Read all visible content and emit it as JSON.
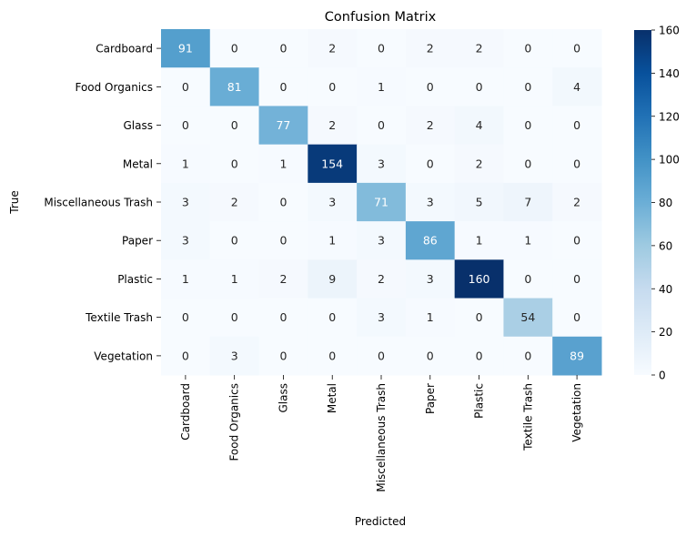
{
  "chart_data": {
    "type": "heatmap",
    "title": "Confusion Matrix",
    "xlabel": "Predicted",
    "ylabel": "True",
    "x_categories": [
      "Cardboard",
      "Food Organics",
      "Glass",
      "Metal",
      "Miscellaneous Trash",
      "Paper",
      "Plastic",
      "Textile Trash",
      "Vegetation"
    ],
    "y_categories": [
      "Cardboard",
      "Food Organics",
      "Glass",
      "Metal",
      "Miscellaneous Trash",
      "Paper",
      "Plastic",
      "Textile Trash",
      "Vegetation"
    ],
    "values": [
      [
        91,
        0,
        0,
        2,
        0,
        2,
        2,
        0,
        0
      ],
      [
        0,
        81,
        0,
        0,
        1,
        0,
        0,
        0,
        4
      ],
      [
        0,
        0,
        77,
        2,
        0,
        2,
        4,
        0,
        0
      ],
      [
        1,
        0,
        1,
        154,
        3,
        0,
        2,
        0,
        0
      ],
      [
        3,
        2,
        0,
        3,
        71,
        3,
        5,
        7,
        2
      ],
      [
        3,
        0,
        0,
        1,
        3,
        86,
        1,
        1,
        0
      ],
      [
        1,
        1,
        2,
        9,
        2,
        3,
        160,
        0,
        0
      ],
      [
        0,
        0,
        0,
        0,
        3,
        1,
        0,
        54,
        0
      ],
      [
        0,
        3,
        0,
        0,
        0,
        0,
        0,
        0,
        89
      ]
    ],
    "colormap": "Blues",
    "color_range": [
      0,
      160
    ],
    "colorbar_ticks": [
      0,
      20,
      40,
      60,
      80,
      100,
      120,
      140,
      160
    ],
    "annotated": true
  }
}
